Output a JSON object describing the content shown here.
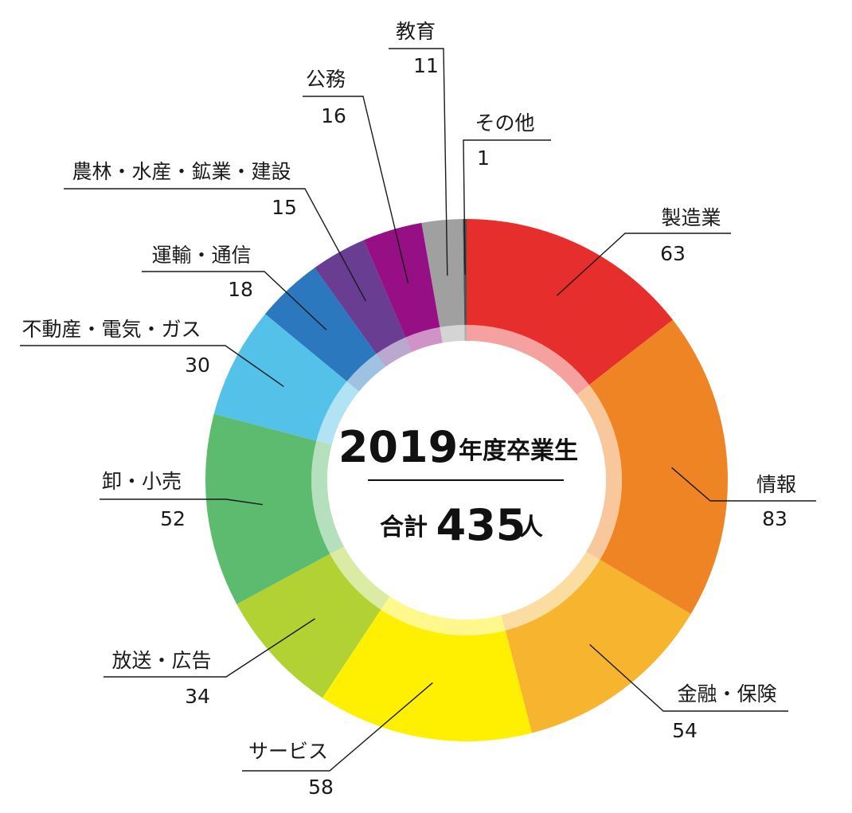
{
  "chart_data": {
    "type": "pie",
    "center": {
      "year": "2019",
      "year_suffix": "年度卒業生",
      "total_prefix": "合計",
      "total": "435",
      "total_unit": "人"
    },
    "slices": [
      {
        "label": "製造業",
        "value": 63,
        "color": "#e62e2d"
      },
      {
        "label": "情報",
        "value": 83,
        "color": "#ef8424"
      },
      {
        "label": "金融・保険",
        "value": 54,
        "color": "#f7b42f"
      },
      {
        "label": "サービス",
        "value": 58,
        "color": "#fef000"
      },
      {
        "label": "放送・広告",
        "value": 34,
        "color": "#b2d234"
      },
      {
        "label": "卸・小売",
        "value": 52,
        "color": "#5cbb6e"
      },
      {
        "label": "不動産・電気・ガス",
        "value": 30,
        "color": "#53c1e8"
      },
      {
        "label": "運輸・通信",
        "value": 18,
        "color": "#2b78be"
      },
      {
        "label": "農林・水産・鉱業・建設",
        "value": 15,
        "color": "#683d92"
      },
      {
        "label": "公務",
        "value": 16,
        "color": "#970f84"
      },
      {
        "label": "教育",
        "value": 11,
        "color": "#a0a0a0"
      },
      {
        "label": "その他",
        "value": 1,
        "color": "#505050"
      }
    ]
  }
}
